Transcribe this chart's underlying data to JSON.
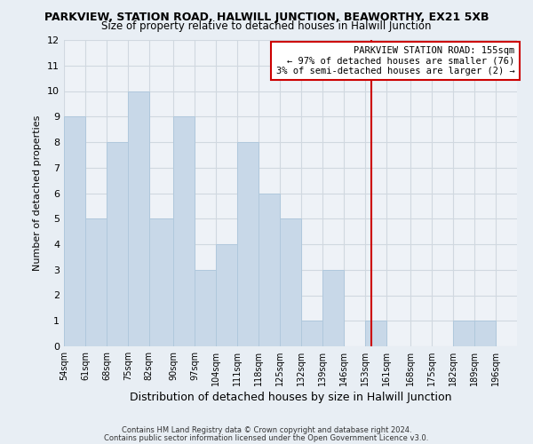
{
  "title": "PARKVIEW, STATION ROAD, HALWILL JUNCTION, BEAWORTHY, EX21 5XB",
  "subtitle": "Size of property relative to detached houses in Halwill Junction",
  "xlabel": "Distribution of detached houses by size in Halwill Junction",
  "ylabel": "Number of detached properties",
  "bar_color": "#c8d8e8",
  "bar_edgecolor": "#b0c8dc",
  "grid_color": "#d0d8e0",
  "background_color": "#e8eef4",
  "plot_bg_color": "#eef2f7",
  "bin_labels": [
    "54sqm",
    "61sqm",
    "68sqm",
    "75sqm",
    "82sqm",
    "90sqm",
    "97sqm",
    "104sqm",
    "111sqm",
    "118sqm",
    "125sqm",
    "132sqm",
    "139sqm",
    "146sqm",
    "153sqm",
    "161sqm",
    "168sqm",
    "175sqm",
    "182sqm",
    "189sqm",
    "196sqm"
  ],
  "bin_edges": [
    54,
    61,
    68,
    75,
    82,
    90,
    97,
    104,
    111,
    118,
    125,
    132,
    139,
    146,
    153,
    160,
    168,
    175,
    182,
    189,
    196,
    203
  ],
  "counts": [
    9,
    5,
    8,
    10,
    5,
    9,
    3,
    4,
    8,
    6,
    5,
    1,
    3,
    0,
    1,
    0,
    0,
    0,
    1,
    1,
    0
  ],
  "vline_x": 155,
  "vline_color": "#cc0000",
  "ylim": [
    0,
    12
  ],
  "yticks": [
    0,
    1,
    2,
    3,
    4,
    5,
    6,
    7,
    8,
    9,
    10,
    11,
    12
  ],
  "annotation_title": "PARKVIEW STATION ROAD: 155sqm",
  "annotation_line1": "← 97% of detached houses are smaller (76)",
  "annotation_line2": "3% of semi-detached houses are larger (2) →",
  "footer_line1": "Contains HM Land Registry data © Crown copyright and database right 2024.",
  "footer_line2": "Contains public sector information licensed under the Open Government Licence v3.0."
}
